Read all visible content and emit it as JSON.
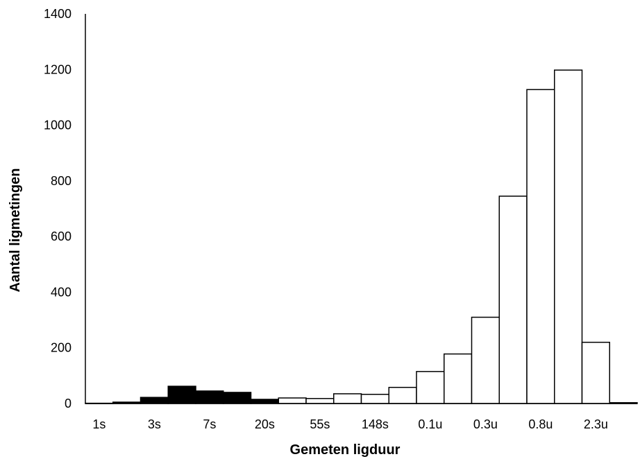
{
  "chart_data": {
    "type": "bar",
    "title": "",
    "xlabel": "Gemeten ligduur",
    "ylabel": "Aantal ligmetingen",
    "ylim": [
      0,
      1400
    ],
    "yticks": [
      0,
      200,
      400,
      600,
      800,
      1000,
      1200,
      1400
    ],
    "x_tick_labels": [
      "1s",
      "3s",
      "7s",
      "20s",
      "55s",
      "148s",
      "0.1u",
      "0.3u",
      "0.8u",
      "2.3u"
    ],
    "grid": false,
    "legend": "none",
    "colors": {
      "black_series": "#000000",
      "white_series": "#ffffff",
      "outline": "#000000"
    },
    "series": [
      {
        "fill": "black",
        "values": [
          1,
          5,
          22,
          62,
          45,
          40,
          15,
          0,
          0,
          0,
          0,
          0,
          0,
          0,
          0,
          0,
          0,
          0,
          0,
          0
        ]
      },
      {
        "fill": "white",
        "values": [
          0,
          0,
          0,
          0,
          0,
          0,
          0,
          20,
          18,
          35,
          33,
          58,
          115,
          178,
          310,
          745,
          1128,
          1198,
          220,
          3
        ]
      }
    ],
    "bins": 20
  }
}
